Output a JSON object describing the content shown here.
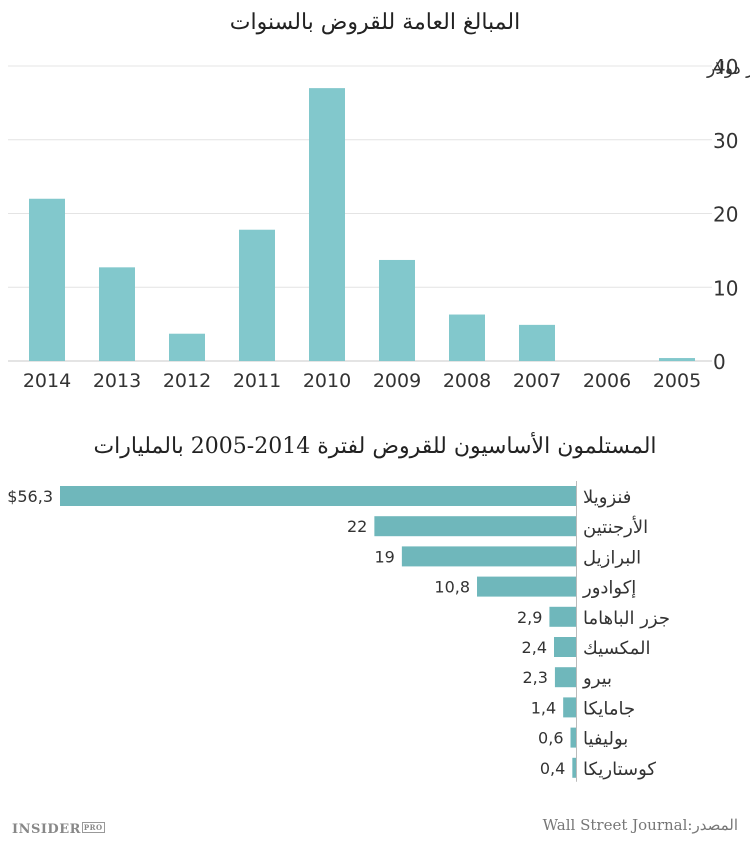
{
  "chart_data": [
    {
      "type": "bar",
      "title": "المبالغ العامة للقروض بالسنوات",
      "ylabel": "مليار دولار",
      "categories": [
        "2014",
        "2013",
        "2012",
        "2011",
        "2010",
        "2009",
        "2008",
        "2007",
        "2006",
        "2005"
      ],
      "values": [
        22,
        12.7,
        3.7,
        17.8,
        37,
        13.7,
        6.3,
        4.9,
        0,
        0.4
      ],
      "ylim": [
        0,
        40
      ],
      "yticks": [
        0,
        10,
        20,
        30,
        40
      ],
      "grid": true,
      "color": "#82c8cc"
    },
    {
      "type": "bar",
      "orientation": "horizontal",
      "title": "المستلمون الأساسيون للقروض لفترة 2014-2005 بالمليارات",
      "categories": [
        "فنزويلا",
        "الأرجنتين",
        "البرازيل",
        "إكوادور",
        "جزر الباهاما",
        "المكسيك",
        "بيرو",
        "جامايكا",
        "بوليفيا",
        "كوستاريكا"
      ],
      "values": [
        56.3,
        22,
        19,
        10.8,
        2.9,
        2.4,
        2.3,
        1.4,
        0.6,
        0.4
      ],
      "value_labels": [
        "$56,3",
        "22",
        "19",
        "10,8",
        "2,9",
        "2,4",
        "2,3",
        "1,4",
        "0,6",
        "0,4"
      ],
      "color": "#6fb7bb"
    }
  ],
  "footer": {
    "source": "المصدر:Wall Street Journal",
    "logo_main": "INSIDER",
    "logo_pro": "PRO"
  }
}
